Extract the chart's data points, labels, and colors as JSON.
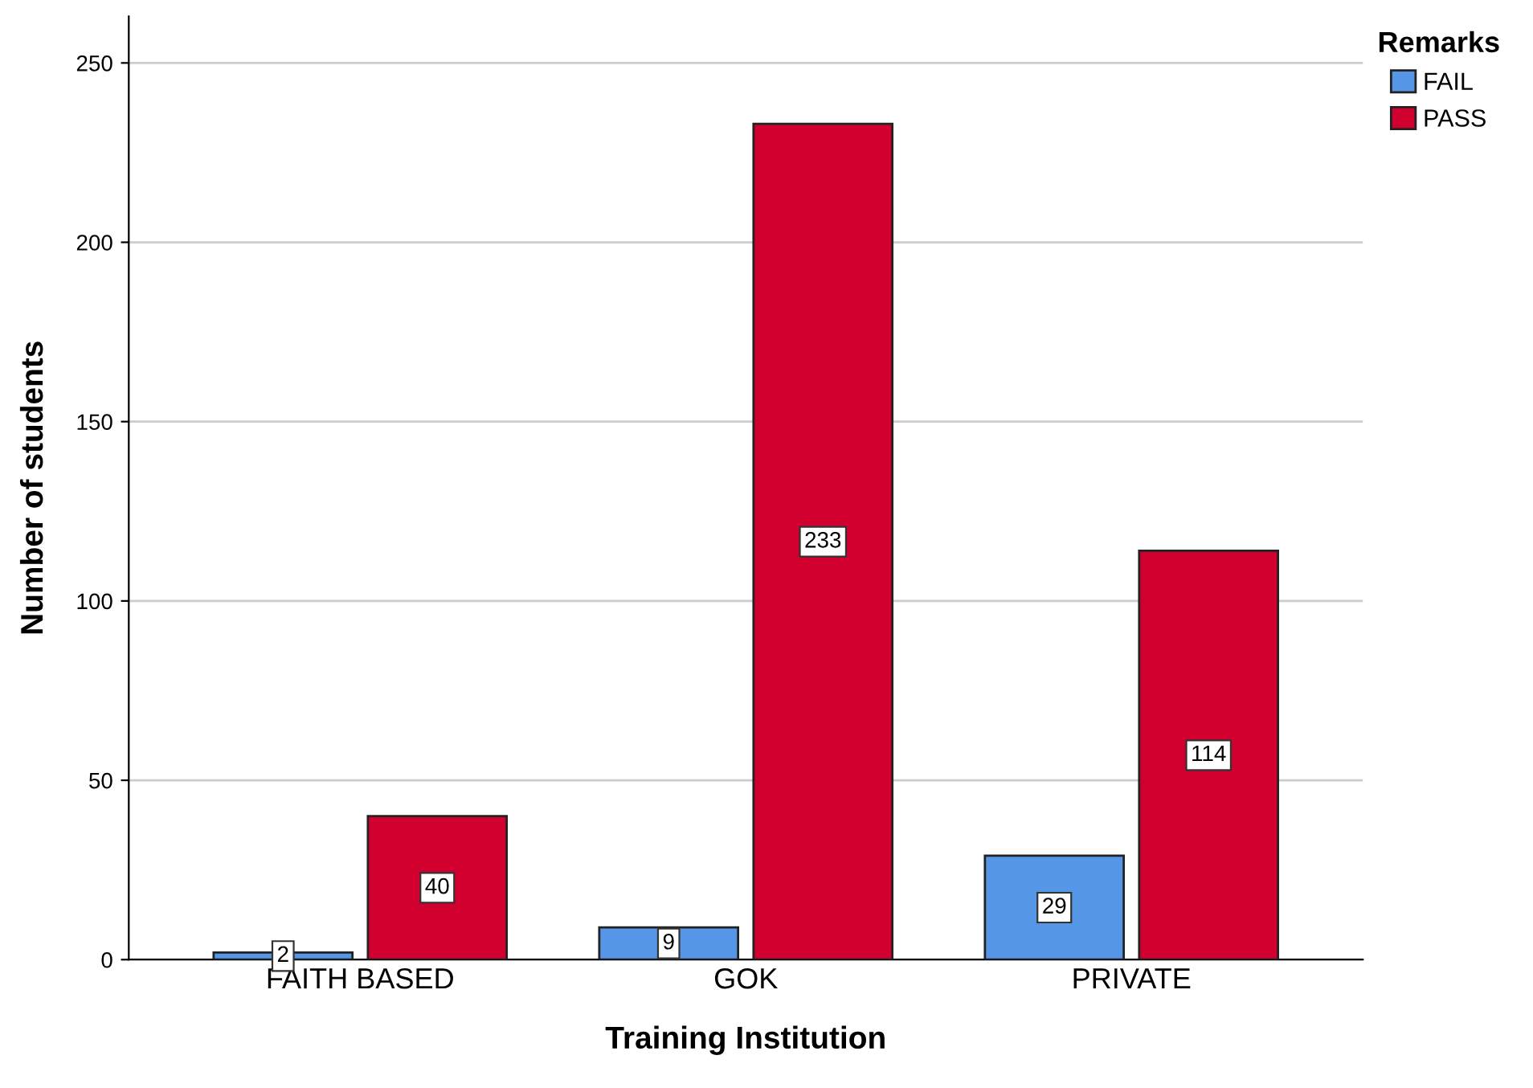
{
  "chart_data": {
    "type": "bar",
    "xlabel": "Training Institution",
    "ylabel": "Number of students",
    "legend_title": "Remarks",
    "categories": [
      "FAITH BASED",
      "GOK",
      "PRIVATE"
    ],
    "series": [
      {
        "name": "FAIL",
        "color": "#5596e6",
        "values": [
          2,
          9,
          29
        ]
      },
      {
        "name": "PASS",
        "color": "#d1002f",
        "values": [
          40,
          233,
          114
        ]
      }
    ],
    "ylim": [
      0,
      263
    ],
    "yticks": [
      0,
      50,
      100,
      150,
      200,
      250
    ],
    "grid": "y",
    "legend": "top right",
    "data_labels": true
  }
}
